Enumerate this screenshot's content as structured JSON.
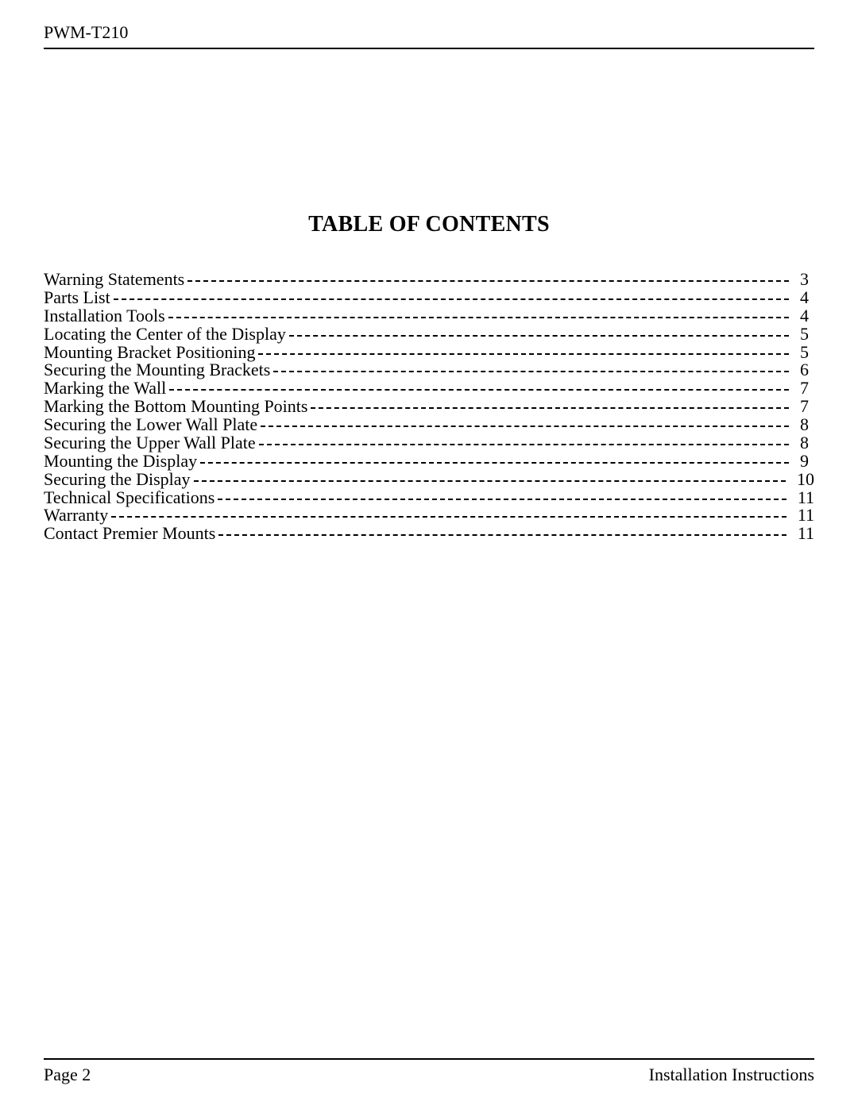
{
  "colors": {
    "background": "#ffffff",
    "text": "#000000",
    "rule": "#000000",
    "leader": "#000000"
  },
  "typography": {
    "font_family": "Times New Roman",
    "header_fontsize_pt": 16,
    "title_fontsize_pt": 21,
    "title_weight": "bold",
    "toc_fontsize_pt": 16,
    "footer_fontsize_pt": 16
  },
  "header": {
    "model": "PWM-T210"
  },
  "title": "TABLE OF CONTENTS",
  "toc": {
    "entries": [
      {
        "label": "Warning Statements",
        "page": "3"
      },
      {
        "label": "Parts List",
        "page": "4"
      },
      {
        "label": "Installation Tools",
        "page": "4"
      },
      {
        "label": "Locating the Center of the Display",
        "page": "5"
      },
      {
        "label": "Mounting Bracket Positioning",
        "page": "5"
      },
      {
        "label": "Securing the Mounting Brackets",
        "page": "6"
      },
      {
        "label": "Marking the Wall",
        "page": "7"
      },
      {
        "label": "Marking the Bottom Mounting Points",
        "page": "7"
      },
      {
        "label": "Securing the Lower Wall Plate",
        "page": "8"
      },
      {
        "label": "Securing the Upper Wall Plate",
        "page": "8"
      },
      {
        "label": "Mounting the Display",
        "page": "9"
      },
      {
        "label": "Securing the Display",
        "page": "10"
      },
      {
        "label": "Technical Specifications",
        "page": "11"
      },
      {
        "label": "Warranty",
        "page": "11"
      },
      {
        "label": "Contact Premier Mounts",
        "page": "11"
      }
    ]
  },
  "footer": {
    "left": "Page 2",
    "right": "Installation Instructions"
  }
}
